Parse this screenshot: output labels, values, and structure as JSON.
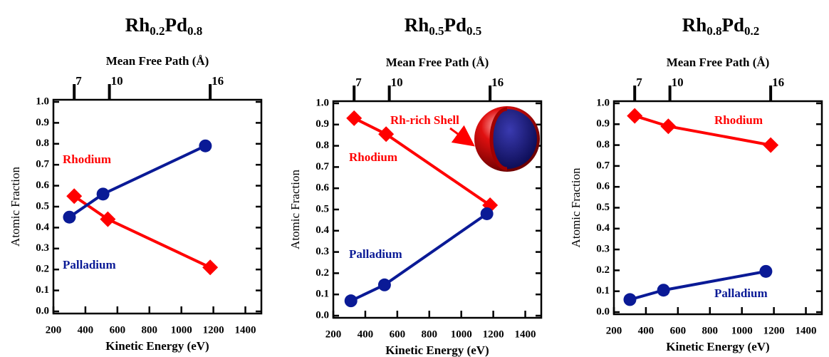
{
  "chart_data": [
    {
      "type": "line",
      "title": {
        "element1": "Rh",
        "sub1": "0.2",
        "element2": "Pd",
        "sub2": "0.8"
      },
      "x2label": "Mean Free Path (Å)",
      "xlabel": "Kinetic Energy (eV)",
      "ylabel": "Atomic Fraction",
      "xlim": [
        200,
        1500
      ],
      "ylim": [
        0,
        1
      ],
      "xticks": [
        200,
        400,
        600,
        800,
        1000,
        1200,
        1400
      ],
      "yticks": [
        {
          "value": 0,
          "label": "0.0"
        },
        0.1,
        0.2,
        0.3,
        0.4,
        0.5,
        0.6,
        0.7,
        0.8,
        0.9,
        {
          "value": 1,
          "label": "1.0"
        }
      ],
      "x2ticks": [
        {
          "value": 330,
          "label": "7"
        },
        {
          "value": 550,
          "label": "10"
        },
        {
          "value": 1180,
          "label": "16"
        }
      ],
      "series": [
        {
          "name": "Rhodium",
          "color": "#ff0000",
          "marker": "diamond",
          "x": [
            330,
            540,
            1180
          ],
          "values": [
            0.55,
            0.44,
            0.21
          ]
        },
        {
          "name": "Palladium",
          "color": "#0a1a96",
          "marker": "circle",
          "x": [
            300,
            510,
            1150
          ],
          "values": [
            0.45,
            0.56,
            0.79
          ]
        }
      ]
    },
    {
      "type": "line",
      "title": {
        "element1": "Rh",
        "sub1": "0.5",
        "element2": "Pd",
        "sub2": "0.5"
      },
      "x2label": "Mean Free Path (Å)",
      "xlabel": "Kinetic Energy (eV)",
      "ylabel": "Atomic Fraction",
      "xlim": [
        200,
        1500
      ],
      "ylim": [
        0,
        1
      ],
      "xticks": [
        200,
        400,
        600,
        800,
        1000,
        1200,
        1400
      ],
      "yticks": [
        {
          "value": 0,
          "label": "0.0"
        },
        0.1,
        0.2,
        0.3,
        0.4,
        0.5,
        0.6,
        0.7,
        0.8,
        0.9,
        {
          "value": 1,
          "label": "1.0"
        }
      ],
      "x2ticks": [
        {
          "value": 330,
          "label": "7"
        },
        {
          "value": 550,
          "label": "10"
        },
        {
          "value": 1180,
          "label": "16"
        }
      ],
      "annotation": "Rh-rich Shell",
      "series": [
        {
          "name": "Rhodium",
          "color": "#ff0000",
          "marker": "diamond",
          "x": [
            330,
            530,
            1180
          ],
          "values": [
            0.93,
            0.855,
            0.52
          ]
        },
        {
          "name": "Palladium",
          "color": "#0a1a96",
          "marker": "circle",
          "x": [
            310,
            520,
            1160
          ],
          "values": [
            0.07,
            0.145,
            0.48
          ]
        }
      ]
    },
    {
      "type": "line",
      "title": {
        "element1": "Rh",
        "sub1": "0.8",
        "element2": "Pd",
        "sub2": "0.2"
      },
      "x2label": "Mean Free Path (Å)",
      "xlabel": "Kinetic Energy (eV)",
      "ylabel": "Atomic Fraction",
      "xlim": [
        200,
        1500
      ],
      "ylim": [
        0,
        1
      ],
      "xticks": [
        200,
        400,
        600,
        800,
        1000,
        1200,
        1400
      ],
      "yticks": [
        {
          "value": 0,
          "label": "0.0"
        },
        0.1,
        0.2,
        0.3,
        0.4,
        0.5,
        0.6,
        0.7,
        0.8,
        0.9,
        {
          "value": 1,
          "label": "1.0"
        }
      ],
      "x2ticks": [
        {
          "value": 330,
          "label": "7"
        },
        {
          "value": 550,
          "label": "10"
        },
        {
          "value": 1180,
          "label": "16"
        }
      ],
      "series": [
        {
          "name": "Rhodium",
          "color": "#ff0000",
          "marker": "diamond",
          "x": [
            330,
            540,
            1180
          ],
          "values": [
            0.94,
            0.89,
            0.8
          ]
        },
        {
          "name": "Palladium",
          "color": "#0a1a96",
          "marker": "circle",
          "x": [
            300,
            510,
            1150
          ],
          "values": [
            0.06,
            0.105,
            0.195
          ]
        }
      ]
    }
  ]
}
